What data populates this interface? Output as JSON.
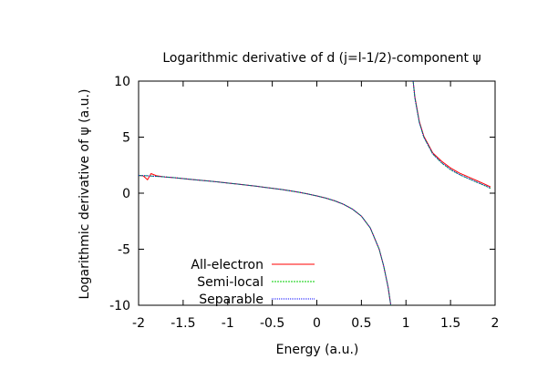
{
  "chart_data": {
    "type": "line",
    "title": "Logarithmic derivative of d (j=l-1/2)-component ψ",
    "xlabel": "Energy (a.u.)",
    "ylabel": "Logarithmic derivative of ψ (a.u.)",
    "xlim": [
      -2,
      2
    ],
    "ylim": [
      -10,
      10
    ],
    "xticks": [
      "-2",
      "-1.5",
      "-1",
      "-0.5",
      "0",
      "0.5",
      "1",
      "1.5",
      "2"
    ],
    "yticks": [
      "10",
      "5",
      "0",
      "-5",
      "-10"
    ],
    "grid": false,
    "legend_position": "bottom-left",
    "series": [
      {
        "name": "All-electron",
        "color": "#ff0000",
        "segments": [
          [
            [
              -2.0,
              1.58
            ],
            [
              -1.95,
              1.55
            ],
            [
              -1.9,
              1.2
            ],
            [
              -1.86,
              1.75
            ],
            [
              -1.8,
              1.55
            ],
            [
              -1.7,
              1.45
            ],
            [
              -1.6,
              1.38
            ],
            [
              -1.5,
              1.3
            ],
            [
              -1.4,
              1.22
            ],
            [
              -1.3,
              1.15
            ],
            [
              -1.2,
              1.07
            ],
            [
              -1.1,
              0.99
            ],
            [
              -1.0,
              0.9
            ],
            [
              -0.9,
              0.82
            ],
            [
              -0.8,
              0.73
            ],
            [
              -0.7,
              0.64
            ],
            [
              -0.6,
              0.54
            ],
            [
              -0.5,
              0.44
            ],
            [
              -0.4,
              0.33
            ],
            [
              -0.3,
              0.21
            ],
            [
              -0.2,
              0.08
            ],
            [
              -0.1,
              -0.07
            ],
            [
              0.0,
              -0.24
            ],
            [
              0.1,
              -0.44
            ],
            [
              0.2,
              -0.68
            ],
            [
              0.3,
              -0.99
            ],
            [
              0.4,
              -1.42
            ],
            [
              0.5,
              -2.05
            ],
            [
              0.6,
              -3.1
            ],
            [
              0.7,
              -5.0
            ],
            [
              0.75,
              -6.5
            ],
            [
              0.8,
              -8.4
            ],
            [
              0.83,
              -10.0
            ]
          ],
          [
            [
              1.08,
              10.0
            ],
            [
              1.1,
              8.6
            ],
            [
              1.15,
              6.4
            ],
            [
              1.2,
              5.1
            ],
            [
              1.3,
              3.6
            ],
            [
              1.4,
              2.85
            ],
            [
              1.5,
              2.25
            ],
            [
              1.6,
              1.8
            ],
            [
              1.7,
              1.45
            ],
            [
              1.8,
              1.1
            ],
            [
              1.9,
              0.75
            ],
            [
              1.95,
              0.55
            ]
          ]
        ]
      },
      {
        "name": "Semi-local",
        "color": "#00cc00",
        "segments": [
          [
            [
              -2.0,
              1.58
            ],
            [
              -1.9,
              1.55
            ],
            [
              -1.8,
              1.5
            ],
            [
              -1.7,
              1.45
            ],
            [
              -1.6,
              1.38
            ],
            [
              -1.5,
              1.3
            ],
            [
              -1.4,
              1.22
            ],
            [
              -1.3,
              1.15
            ],
            [
              -1.2,
              1.07
            ],
            [
              -1.1,
              0.99
            ],
            [
              -1.0,
              0.9
            ],
            [
              -0.9,
              0.82
            ],
            [
              -0.8,
              0.73
            ],
            [
              -0.7,
              0.64
            ],
            [
              -0.6,
              0.54
            ],
            [
              -0.5,
              0.44
            ],
            [
              -0.4,
              0.33
            ],
            [
              -0.3,
              0.21
            ],
            [
              -0.2,
              0.08
            ],
            [
              -0.1,
              -0.07
            ],
            [
              0.0,
              -0.24
            ],
            [
              0.1,
              -0.44
            ],
            [
              0.2,
              -0.68
            ],
            [
              0.3,
              -0.99
            ],
            [
              0.4,
              -1.42
            ],
            [
              0.5,
              -2.05
            ],
            [
              0.6,
              -3.1
            ],
            [
              0.7,
              -5.0
            ],
            [
              0.75,
              -6.5
            ],
            [
              0.8,
              -8.4
            ],
            [
              0.83,
              -10.0
            ]
          ],
          [
            [
              1.08,
              10.0
            ],
            [
              1.1,
              8.5
            ],
            [
              1.15,
              6.3
            ],
            [
              1.2,
              5.0
            ],
            [
              1.3,
              3.5
            ],
            [
              1.4,
              2.7
            ],
            [
              1.5,
              2.1
            ],
            [
              1.6,
              1.65
            ],
            [
              1.7,
              1.3
            ],
            [
              1.8,
              0.95
            ],
            [
              1.9,
              0.62
            ],
            [
              1.95,
              0.42
            ]
          ]
        ]
      },
      {
        "name": "Separable",
        "color": "#0000ff",
        "segments": [
          [
            [
              -2.0,
              1.58
            ],
            [
              -1.9,
              1.55
            ],
            [
              -1.8,
              1.5
            ],
            [
              -1.7,
              1.45
            ],
            [
              -1.6,
              1.38
            ],
            [
              -1.5,
              1.3
            ],
            [
              -1.4,
              1.22
            ],
            [
              -1.3,
              1.15
            ],
            [
              -1.2,
              1.07
            ],
            [
              -1.1,
              0.99
            ],
            [
              -1.0,
              0.9
            ],
            [
              -0.9,
              0.82
            ],
            [
              -0.8,
              0.73
            ],
            [
              -0.7,
              0.64
            ],
            [
              -0.6,
              0.54
            ],
            [
              -0.5,
              0.44
            ],
            [
              -0.4,
              0.33
            ],
            [
              -0.3,
              0.21
            ],
            [
              -0.2,
              0.08
            ],
            [
              -0.1,
              -0.07
            ],
            [
              0.0,
              -0.24
            ],
            [
              0.1,
              -0.44
            ],
            [
              0.2,
              -0.68
            ],
            [
              0.3,
              -0.99
            ],
            [
              0.4,
              -1.42
            ],
            [
              0.5,
              -2.05
            ],
            [
              0.6,
              -3.1
            ],
            [
              0.7,
              -5.0
            ],
            [
              0.75,
              -6.5
            ],
            [
              0.8,
              -8.4
            ],
            [
              0.83,
              -10.0
            ]
          ],
          [
            [
              1.08,
              10.0
            ],
            [
              1.1,
              8.5
            ],
            [
              1.15,
              6.3
            ],
            [
              1.2,
              5.0
            ],
            [
              1.3,
              3.5
            ],
            [
              1.4,
              2.72
            ],
            [
              1.5,
              2.12
            ],
            [
              1.6,
              1.67
            ],
            [
              1.7,
              1.32
            ],
            [
              1.8,
              0.97
            ],
            [
              1.9,
              0.64
            ],
            [
              1.95,
              0.44
            ]
          ]
        ]
      }
    ]
  }
}
